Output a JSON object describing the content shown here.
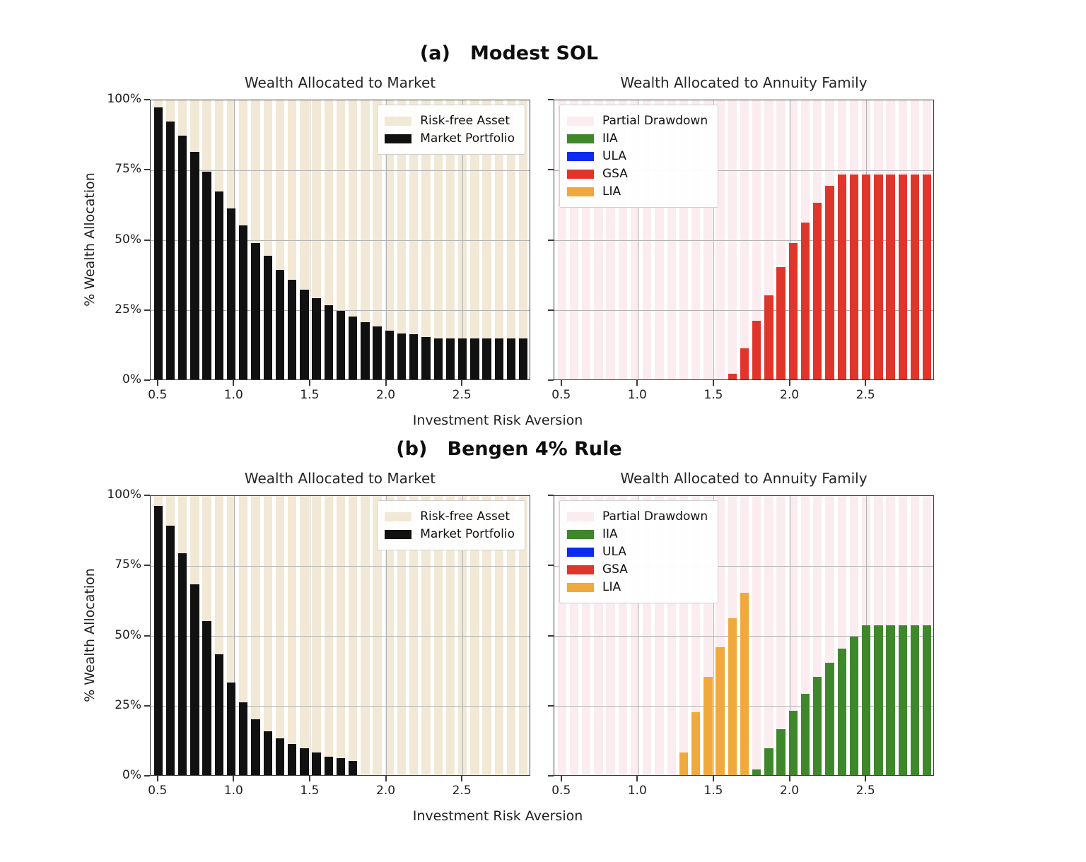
{
  "colors": {
    "risk_free_beige": "#f2e8d6",
    "partial_drawdown_pink": "#fbecf0",
    "market_black": "#111111",
    "iia_green": "#3e882b",
    "ula_blue": "#0d2bf0",
    "gsa_red": "#e0352a",
    "lia_orange": "#f0a93c",
    "gridline": "#b3b3b3",
    "spine": "#3a3a3a"
  },
  "chart_data": {
    "type": "bar",
    "x_values": [
      0.5,
      0.58,
      0.66,
      0.74,
      0.82,
      0.9,
      0.98,
      1.06,
      1.14,
      1.22,
      1.3,
      1.38,
      1.46,
      1.54,
      1.62,
      1.7,
      1.78,
      1.86,
      1.94,
      2.02,
      2.1,
      2.18,
      2.26,
      2.34,
      2.42,
      2.5,
      2.58,
      2.66,
      2.74,
      2.82,
      2.9
    ],
    "x_axis": {
      "min": 0.45,
      "max": 2.95,
      "ticks": [
        0.5,
        1.0,
        1.5,
        2.0,
        2.5
      ],
      "tick_labels": [
        "0.5",
        "1.0",
        "1.5",
        "2.0",
        "2.5"
      ],
      "grid_at": [
        1.0,
        1.5,
        2.0,
        2.5
      ]
    },
    "y_axis": {
      "min": 0,
      "max": 100,
      "ticks": [
        0,
        25,
        50,
        75,
        100
      ],
      "tick_labels": [
        "0%",
        "25%",
        "50%",
        "75%",
        "100%"
      ],
      "grid_at": [
        25,
        50,
        75
      ],
      "label": "% Wealth Allocation"
    },
    "groups": [
      {
        "suptitle": "(a)   Modest SOL",
        "xlabel": "Investment Risk Aversion",
        "panels": [
          {
            "title": "Wealth Allocated to Market",
            "ylabel": "% Wealth Allocation",
            "ytick_labels_visible": true,
            "background": {
              "name": "Risk-free Asset",
              "color": "#f2e8d6"
            },
            "legend_position": "top-right",
            "legend": [
              {
                "label": "Risk-free Asset",
                "color": "#f2e8d6"
              },
              {
                "label": "Market Portfolio",
                "color": "#111111"
              }
            ],
            "series": [
              {
                "name": "Market Portfolio",
                "color": "#111111",
                "values": [
                  97,
                  92,
                  87,
                  81,
                  74,
                  67,
                  61,
                  55,
                  48.5,
                  44,
                  39,
                  35.5,
                  32,
                  29,
                  26.5,
                  24.5,
                  22.5,
                  20.5,
                  19,
                  17.5,
                  16.5,
                  16,
                  15,
                  14.5,
                  14.5,
                  14.5,
                  14.5,
                  14.5,
                  14.5,
                  14.5,
                  14.5
                ]
              }
            ]
          },
          {
            "title": "Wealth Allocated to Annuity Family",
            "ylabel": "",
            "ytick_labels_visible": false,
            "background": {
              "name": "Partial Drawdown",
              "color": "#fbecf0"
            },
            "legend_position": "top-left",
            "legend": [
              {
                "label": "Partial Drawdown",
                "color": "#fbecf0"
              },
              {
                "label": "IIA",
                "color": "#3e882b"
              },
              {
                "label": "ULA",
                "color": "#0d2bf0"
              },
              {
                "label": "GSA",
                "color": "#e0352a"
              },
              {
                "label": "LIA",
                "color": "#f0a93c"
              }
            ],
            "series": [
              {
                "name": "GSA",
                "color": "#e0352a",
                "values": [
                  0,
                  0,
                  0,
                  0,
                  0,
                  0,
                  0,
                  0,
                  0,
                  0,
                  0,
                  0,
                  0,
                  0,
                  2,
                  11,
                  21,
                  30,
                  40,
                  48.5,
                  56,
                  63,
                  69,
                  73,
                  73,
                  73,
                  73,
                  73,
                  73,
                  73,
                  73
                ]
              }
            ]
          }
        ]
      },
      {
        "suptitle": "(b)   Bengen 4% Rule",
        "xlabel": "Investment Risk Aversion",
        "panels": [
          {
            "title": "Wealth Allocated to Market",
            "ylabel": "% Wealth Allocation",
            "ytick_labels_visible": true,
            "background": {
              "name": "Risk-free Asset",
              "color": "#f2e8d6"
            },
            "legend_position": "top-right",
            "legend": [
              {
                "label": "Risk-free Asset",
                "color": "#f2e8d6"
              },
              {
                "label": "Market Portfolio",
                "color": "#111111"
              }
            ],
            "series": [
              {
                "name": "Market Portfolio",
                "color": "#111111",
                "values": [
                  96,
                  89,
                  79,
                  68,
                  55,
                  43,
                  33,
                  26,
                  20,
                  15.5,
                  13,
                  11,
                  9.5,
                  8,
                  6.5,
                  6,
                  5,
                  0,
                  0,
                  0,
                  0,
                  0,
                  0,
                  0,
                  0,
                  0,
                  0,
                  0,
                  0,
                  0,
                  0
                ]
              }
            ]
          },
          {
            "title": "Wealth Allocated to Annuity Family",
            "ylabel": "",
            "ytick_labels_visible": false,
            "background": {
              "name": "Partial Drawdown",
              "color": "#fbecf0"
            },
            "legend_position": "top-left",
            "legend": [
              {
                "label": "Partial Drawdown",
                "color": "#fbecf0"
              },
              {
                "label": "IIA",
                "color": "#3e882b"
              },
              {
                "label": "ULA",
                "color": "#0d2bf0"
              },
              {
                "label": "GSA",
                "color": "#e0352a"
              },
              {
                "label": "LIA",
                "color": "#f0a93c"
              }
            ],
            "series": [
              {
                "name": "LIA",
                "color": "#f0a93c",
                "values": [
                  0,
                  0,
                  0,
                  0,
                  0,
                  0,
                  0,
                  0,
                  0,
                  0,
                  8,
                  22.5,
                  35,
                  45.5,
                  56,
                  65,
                  0,
                  0,
                  0,
                  0,
                  0,
                  0,
                  0,
                  0,
                  0,
                  0,
                  0,
                  0,
                  0,
                  0,
                  0
                ]
              },
              {
                "name": "IIA",
                "color": "#3e882b",
                "values": [
                  0,
                  0,
                  0,
                  0,
                  0,
                  0,
                  0,
                  0,
                  0,
                  0,
                  0,
                  0,
                  0,
                  0,
                  0,
                  0,
                  2,
                  9.5,
                  16.5,
                  23,
                  29,
                  35,
                  40,
                  45,
                  49.5,
                  53.5,
                  53.5,
                  53.5,
                  53.5,
                  53.5,
                  53.5
                ]
              }
            ]
          }
        ]
      }
    ]
  }
}
